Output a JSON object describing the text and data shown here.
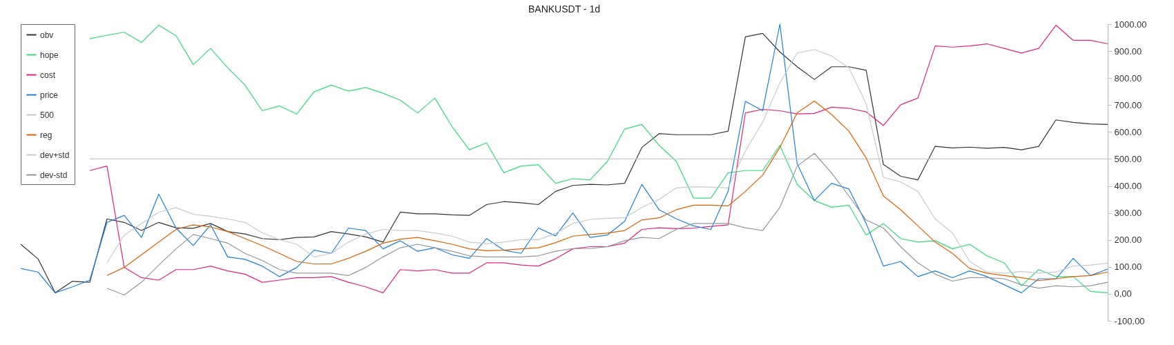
{
  "chart_data": {
    "type": "line",
    "title": "BANKUSDT - 1d",
    "categories": [
      null,
      null,
      null,
      null,
      null,
      null,
      null,
      null,
      null,
      null,
      null,
      null,
      null,
      null,
      null,
      null,
      null,
      null,
      null,
      null,
      null,
      null,
      null,
      null,
      null,
      null,
      null,
      null,
      null,
      null,
      null,
      null,
      null,
      null,
      null,
      null,
      null,
      null,
      null,
      null,
      null,
      null,
      null,
      null,
      null,
      null,
      null,
      null,
      null,
      null,
      null,
      null,
      null,
      null,
      null,
      null,
      null,
      null,
      null,
      null,
      null,
      null,
      null,
      null
    ],
    "series": [
      {
        "name": "obv",
        "color": "#333333",
        "values": [
          184,
          130,
          4,
          47,
          43,
          278,
          265,
          235,
          265,
          245,
          243,
          261,
          231,
          222,
          205,
          201,
          209,
          211,
          231,
          222,
          211,
          192,
          303,
          297,
          297,
          293,
          291,
          331,
          342,
          338,
          331,
          380,
          402,
          406,
          404,
          410,
          543,
          594,
          590,
          590,
          590,
          603,
          953,
          966,
          897,
          842,
          795,
          842,
          842,
          829,
          480,
          436,
          423,
          547,
          541,
          544,
          540,
          543,
          534,
          547,
          645,
          636,
          630,
          628
        ]
      },
      {
        "name": "hope",
        "color": "#2fdc78",
        "values": [
          null,
          null,
          null,
          null,
          946,
          959,
          970,
          932,
          996,
          957,
          850,
          910,
          838,
          774,
          679,
          697,
          667,
          749,
          774,
          752,
          765,
          744,
          718,
          671,
          726,
          620,
          534,
          560,
          449,
          474,
          479,
          410,
          427,
          423,
          491,
          611,
          628,
          551,
          491,
          355,
          355,
          449,
          457,
          457,
          551,
          406,
          346,
          321,
          329,
          218,
          261,
          205,
          192,
          197,
          167,
          184,
          141,
          115,
          30,
          90,
          64,
          64,
          9,
          4
        ]
      },
      {
        "name": "cost",
        "color": "#e8207f",
        "values": [
          null,
          null,
          null,
          null,
          457,
          474,
          98,
          60,
          51,
          90,
          90,
          103,
          85,
          73,
          43,
          51,
          60,
          60,
          64,
          43,
          26,
          4,
          90,
          85,
          90,
          77,
          77,
          115,
          115,
          107,
          103,
          130,
          167,
          175,
          175,
          188,
          239,
          245,
          242,
          244,
          250,
          256,
          671,
          684,
          679,
          667,
          669,
          692,
          688,
          675,
          624,
          701,
          726,
          919,
          915,
          919,
          927,
          910,
          893,
          910,
          996,
          940,
          940,
          927
        ]
      },
      {
        "name": "price",
        "color": "#1a80e0",
        "values": [
          94,
          81,
          4,
          26,
          51,
          265,
          291,
          209,
          370,
          244,
          179,
          256,
          137,
          128,
          103,
          64,
          98,
          162,
          150,
          244,
          235,
          167,
          197,
          158,
          171,
          145,
          132,
          205,
          162,
          150,
          244,
          215,
          300,
          209,
          218,
          269,
          406,
          312,
          278,
          252,
          239,
          380,
          714,
          679,
          1000,
          483,
          346,
          410,
          389,
          261,
          103,
          120,
          64,
          85,
          60,
          85,
          64,
          34,
          4,
          56,
          56,
          132,
          68,
          92
        ]
      },
      {
        "name": "500",
        "color": "#c8c8c8",
        "values": [
          null,
          null,
          null,
          null,
          500,
          500,
          500,
          500,
          500,
          500,
          500,
          500,
          500,
          500,
          500,
          500,
          500,
          500,
          500,
          500,
          500,
          500,
          500,
          500,
          500,
          500,
          500,
          500,
          500,
          500,
          500,
          500,
          500,
          500,
          500,
          500,
          500,
          500,
          500,
          500,
          500,
          500,
          500,
          500,
          500,
          500,
          500,
          500,
          500,
          500,
          500,
          500,
          500,
          500,
          500,
          500,
          500,
          500,
          500,
          500,
          500,
          500,
          500,
          500
        ]
      },
      {
        "name": "reg",
        "color": "#e06000",
        "values": [
          null,
          null,
          null,
          null,
          null,
          68,
          98,
          145,
          192,
          239,
          256,
          248,
          231,
          205,
          179,
          150,
          120,
          111,
          111,
          132,
          158,
          188,
          203,
          209,
          197,
          184,
          167,
          160,
          162,
          167,
          171,
          190,
          214,
          220,
          225,
          235,
          274,
          282,
          312,
          329,
          329,
          326,
          380,
          440,
          543,
          671,
          715,
          665,
          603,
          504,
          363,
          312,
          252,
          192,
          150,
          94,
          77,
          68,
          60,
          49,
          56,
          64,
          68,
          81
        ]
      },
      {
        "name": "dev+std",
        "color": "#c4cbd0",
        "values": [
          null,
          null,
          null,
          null,
          null,
          115,
          218,
          261,
          303,
          320,
          295,
          288,
          278,
          265,
          226,
          201,
          184,
          137,
          150,
          192,
          222,
          239,
          235,
          235,
          226,
          214,
          192,
          186,
          192,
          201,
          201,
          224,
          261,
          276,
          280,
          282,
          321,
          350,
          393,
          397,
          396,
          393,
          530,
          636,
          782,
          893,
          906,
          882,
          838,
          705,
          432,
          415,
          380,
          278,
          226,
          120,
          81,
          77,
          83,
          77,
          81,
          103,
          107,
          114
        ]
      },
      {
        "name": "dev-std",
        "color": "#8e979d",
        "values": [
          null,
          null,
          null,
          null,
          null,
          21,
          -4,
          43,
          107,
          167,
          220,
          205,
          188,
          150,
          124,
          90,
          77,
          77,
          77,
          68,
          98,
          137,
          171,
          184,
          171,
          158,
          141,
          137,
          137,
          137,
          141,
          158,
          168,
          168,
          175,
          197,
          209,
          205,
          239,
          261,
          261,
          261,
          245,
          235,
          321,
          474,
          521,
          448,
          363,
          274,
          244,
          175,
          115,
          73,
          47,
          60,
          60,
          56,
          34,
          21,
          30,
          26,
          30,
          43
        ]
      }
    ],
    "ylim": [
      -100,
      1000
    ],
    "yticks": [
      {
        "value": -100,
        "label": "-100.00"
      },
      {
        "value": 0,
        "label": "0.00"
      },
      {
        "value": 100,
        "label": "100.00"
      },
      {
        "value": 200,
        "label": "200.00"
      },
      {
        "value": 300,
        "label": "300.00"
      },
      {
        "value": 400,
        "label": "400.00"
      },
      {
        "value": 500,
        "label": "500.00"
      },
      {
        "value": 600,
        "label": "600.00"
      },
      {
        "value": 700,
        "label": "700.00"
      },
      {
        "value": 800,
        "label": "800.00"
      },
      {
        "value": 900,
        "label": "900.00"
      },
      {
        "value": 1000,
        "label": "1000.00"
      }
    ],
    "tick_labels": "y",
    "grid": false,
    "legend": "top left",
    "marker": "none",
    "line_style": "solid"
  }
}
